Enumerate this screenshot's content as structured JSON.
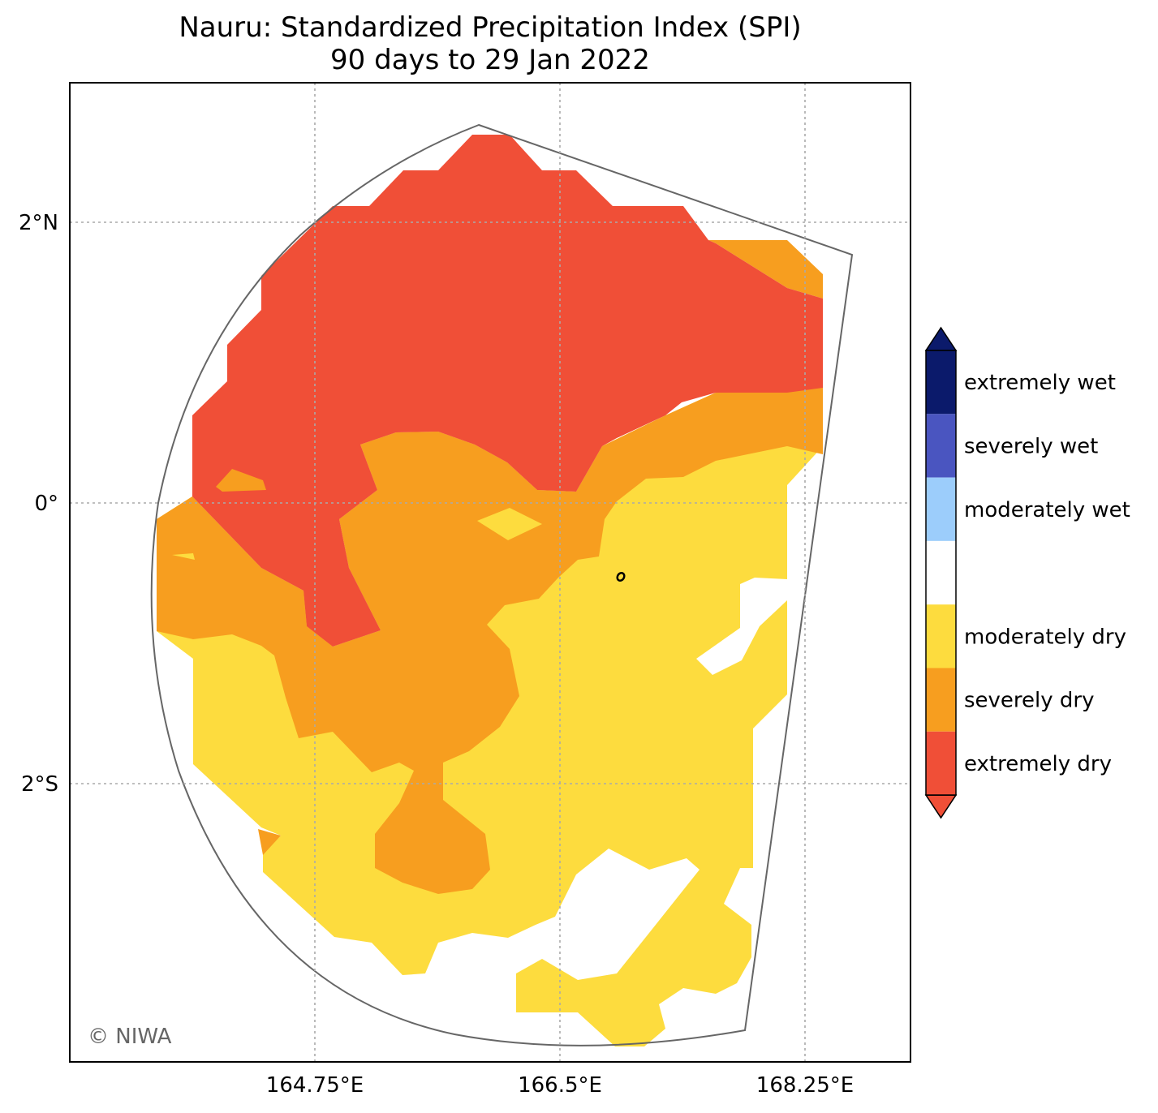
{
  "title": {
    "line1": "Nauru: Standardized Precipitation Index (SPI)",
    "line2": "90 days to 29 Jan 2022"
  },
  "axes": {
    "x_ticks": [
      "164.75°E",
      "166.5°E",
      "168.25°E"
    ],
    "y_ticks": [
      "2°N",
      "0°",
      "2°S"
    ],
    "gridlines": true
  },
  "legend": {
    "placement": "right",
    "categories": [
      {
        "label": "extremely wet",
        "color": "#0b1a6b"
      },
      {
        "label": "severely wet",
        "color": "#4a55c0"
      },
      {
        "label": "moderately wet",
        "color": "#9ccdfb"
      },
      {
        "label": "",
        "color": "#ffffff"
      },
      {
        "label": "moderately dry",
        "color": "#fddc3e"
      },
      {
        "label": "severely dry",
        "color": "#f79e1f"
      },
      {
        "label": "extremely dry",
        "color": "#f04f37"
      }
    ],
    "extend_top_color": "#0b1a6b",
    "extend_bottom_color": "#f04f37"
  },
  "credit": "© NIWA"
}
